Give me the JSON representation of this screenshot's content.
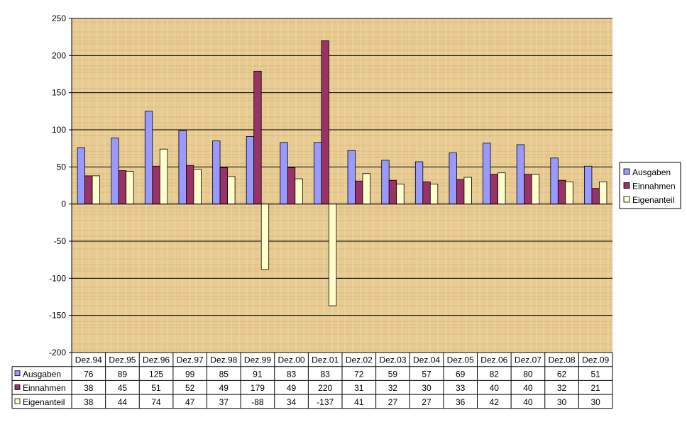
{
  "chart_data": {
    "type": "bar",
    "title": "",
    "xlabel": "",
    "ylabel": "",
    "ylim": [
      -200,
      250
    ],
    "yticks": [
      250,
      200,
      150,
      100,
      50,
      0,
      -50,
      -100,
      -150,
      -200
    ],
    "grid": true,
    "legend_position": "right",
    "data_table": true,
    "categories": [
      "Dez.94",
      "Dez.95",
      "Dez.96",
      "Dez.97",
      "Dez.98",
      "Dez.99",
      "Dez.00",
      "Dez.01",
      "Dez.02",
      "Dez.03",
      "Dez.04",
      "Dez.05",
      "Dez.06",
      "Dez.07",
      "Dez.08",
      "Dez.09"
    ],
    "series": [
      {
        "name": "Ausgaben",
        "color": "#9999ff",
        "values": [
          76,
          89,
          125,
          99,
          85,
          91,
          83,
          83,
          72,
          59,
          57,
          69,
          82,
          80,
          62,
          51
        ]
      },
      {
        "name": "Einnahmen",
        "color": "#993366",
        "values": [
          38,
          45,
          51,
          52,
          49,
          179,
          49,
          220,
          31,
          32,
          30,
          33,
          40,
          40,
          32,
          21
        ]
      },
      {
        "name": "Eigenanteil",
        "color": "#ffffcc",
        "values": [
          38,
          44,
          74,
          47,
          37,
          -88,
          34,
          -137,
          41,
          27,
          27,
          36,
          42,
          40,
          30,
          30
        ]
      }
    ],
    "plot_background": "#e6c890"
  }
}
